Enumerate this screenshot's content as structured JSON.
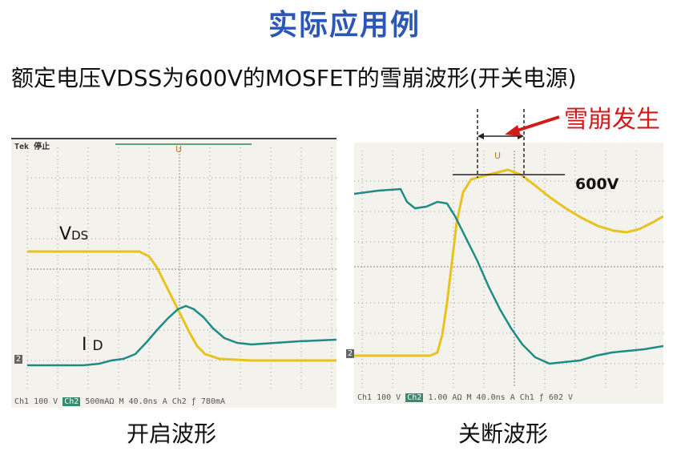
{
  "title": "实际应用例",
  "subtitle": "额定电压VDSS为600V的MOSFET的雪崩波形(开关电源)",
  "avalanche_label": "雪崩发生",
  "left_scope": {
    "tek_label": "Tek 停止",
    "vds_main": "V",
    "vds_sub": "DS",
    "id_main": "I",
    "id_sub": "D",
    "ch2_marker": "2",
    "ch1_label": "Ch1",
    "ch1_scale": "100 V",
    "ch2_label": "Ch2",
    "ch2_scale": "500mAΩ",
    "time_scale": "M 40.0ns",
    "trigger": "A  Ch2  ƒ",
    "trigger_level": "780mA",
    "caption": "开启波形",
    "trace_vds_color": "#e8c31e",
    "trace_id_color": "#1e8c86"
  },
  "right_scope": {
    "v600_label": "600V",
    "ch2_marker": "2",
    "ch1_label": "Ch1",
    "ch1_scale": "100 V",
    "ch2_label": "Ch2",
    "ch2_scale": "1.00 AΩ",
    "time_scale": "M 40.0ns",
    "trigger": "A  Ch1  ƒ",
    "trigger_level": "602 V",
    "caption": "关断波形"
  }
}
